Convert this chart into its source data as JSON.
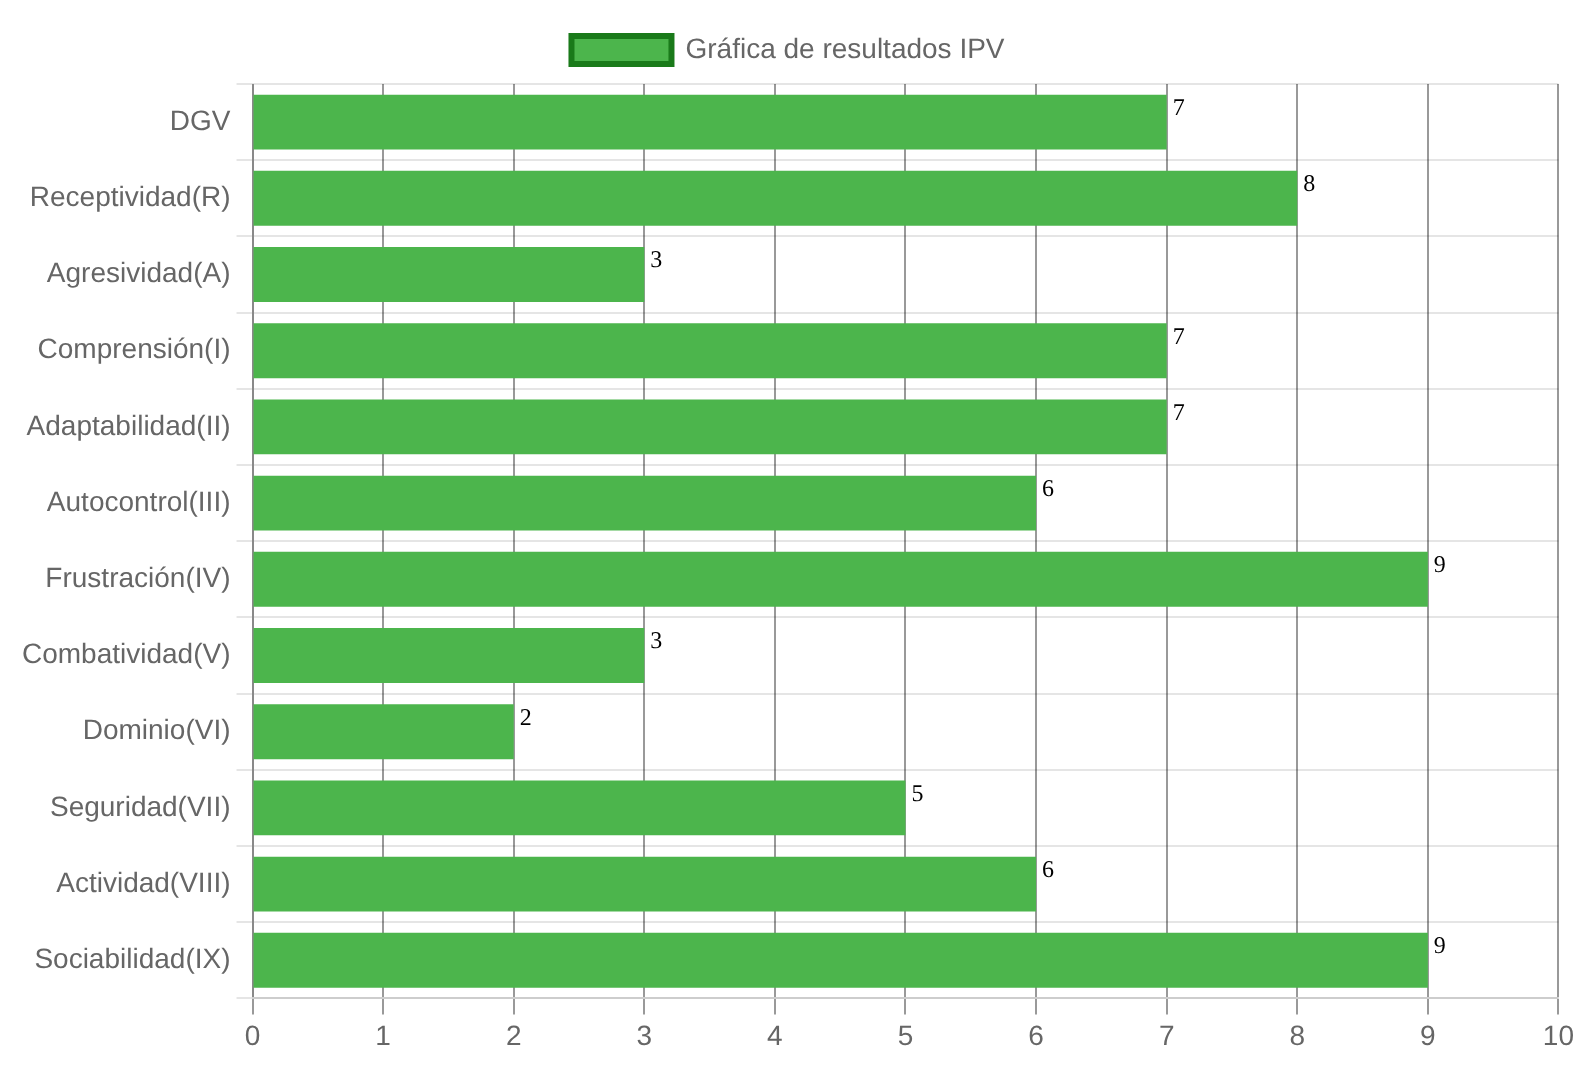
{
  "chart_data": {
    "type": "bar",
    "orientation": "horizontal",
    "categories": [
      "DGV",
      "Receptividad(R)",
      "Agresividad(A)",
      "Comprensión(I)",
      "Adaptabilidad(II)",
      "Autocontrol(III)",
      "Frustración(IV)",
      "Combatividad(V)",
      "Dominio(VI)",
      "Seguridad(VII)",
      "Actividad(VIII)",
      "Sociabilidad(IX)"
    ],
    "series": [
      {
        "name": "Gráfica de resultados IPV",
        "color": "#4cb54c",
        "values": [
          7,
          8,
          3,
          7,
          7,
          6,
          9,
          3,
          2,
          5,
          6,
          9
        ]
      }
    ],
    "xlim": [
      0,
      10
    ],
    "xticks": [
      0,
      1,
      2,
      3,
      4,
      5,
      6,
      7,
      8,
      9,
      10
    ],
    "grid": true,
    "legend": "top",
    "data_labels": true
  }
}
